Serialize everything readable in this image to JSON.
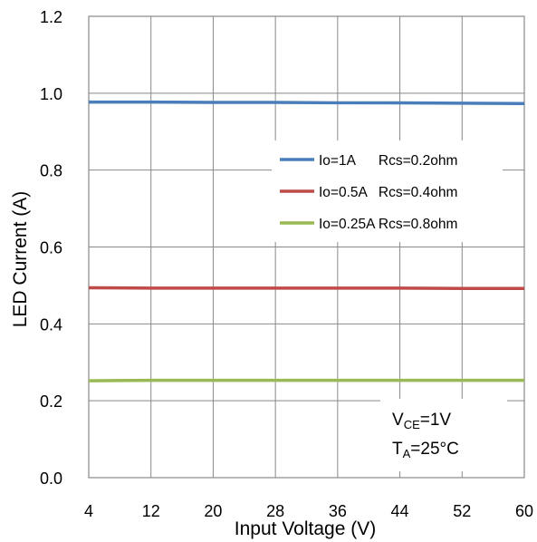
{
  "chart_data": {
    "type": "line",
    "xlabel": "Input Voltage (V)",
    "ylabel": "LED Current (A)",
    "xlim": [
      4,
      60
    ],
    "ylim": [
      0,
      1.2
    ],
    "xticks": [
      4,
      12,
      20,
      28,
      36,
      44,
      52,
      60
    ],
    "yticks": [
      0.0,
      0.2,
      0.4,
      0.6,
      0.8,
      1.0,
      1.2
    ],
    "ytick_labels": [
      "0.0",
      "0.2",
      "0.4",
      "0.6",
      "0.8",
      "1.0",
      "1.2"
    ],
    "grid": true,
    "legend_position": "right",
    "series": [
      {
        "name": "Io=1A      Rcs=0.2ohm",
        "color": "#4a7ebb",
        "x": [
          4,
          12,
          20,
          28,
          36,
          44,
          52,
          60
        ],
        "values": [
          0.977,
          0.977,
          0.976,
          0.976,
          0.975,
          0.975,
          0.974,
          0.973
        ]
      },
      {
        "name": "Io=0.5A   Rcs=0.4ohm",
        "color": "#be4b48",
        "x": [
          4,
          12,
          20,
          28,
          36,
          44,
          52,
          60
        ],
        "values": [
          0.494,
          0.493,
          0.493,
          0.493,
          0.493,
          0.493,
          0.492,
          0.492
        ]
      },
      {
        "name": "Io=0.25A Rcs=0.8ohm",
        "color": "#98b954",
        "x": [
          4,
          12,
          20,
          28,
          36,
          44,
          52,
          60
        ],
        "values": [
          0.252,
          0.253,
          0.253,
          0.253,
          0.253,
          0.253,
          0.253,
          0.253
        ]
      }
    ],
    "annotations": {
      "vce": {
        "prefix": "V",
        "sub": "CE",
        "suffix": "=1V"
      },
      "ta": {
        "prefix": "T",
        "sub": "A",
        "suffix": "=25°C"
      }
    }
  }
}
